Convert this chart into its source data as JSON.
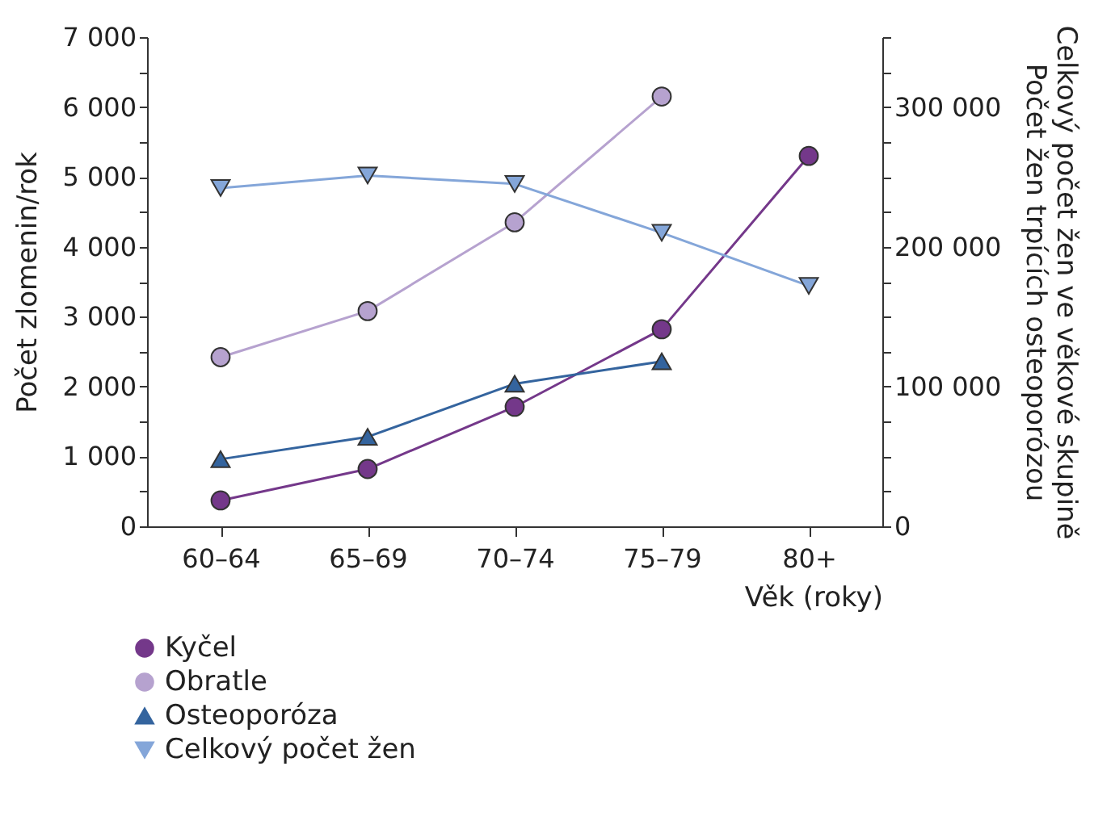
{
  "chart_data": {
    "type": "line",
    "xlabel": "Věk (roky)",
    "ylabel": "Počet zlomenin/rok",
    "y2label": "Celkový počet žen ve věkové skupině\nPočet žen trpících osteoporózou",
    "categories": [
      "60–64",
      "65–69",
      "70–74",
      "75–79",
      "80+"
    ],
    "series": [
      {
        "name": "Kyčel",
        "color": "#74388a",
        "marker": "circle",
        "values": [
          370,
          820,
          1710,
          2820,
          5300
        ]
      },
      {
        "name": "Obratle",
        "color": "#b6a2cf",
        "marker": "circle",
        "values": [
          2420,
          3080,
          4350,
          6150,
          null
        ]
      },
      {
        "name": "Osteoporóza",
        "color": "#34649e",
        "marker": "triangle",
        "axis": "y2",
        "values": [
          48000,
          64000,
          102000,
          118000,
          null
        ]
      },
      {
        "name": "Celkový počet žen",
        "color": "#84a6d9",
        "marker": "triangle-down",
        "axis": "y2",
        "values": [
          242000,
          251000,
          245000,
          210000,
          172000
        ]
      }
    ],
    "ylim": [
      0,
      7000
    ],
    "yticks": [
      0,
      {
        "value": 500,
        "label": null
      },
      {
        "value": 1000,
        "label": "1 000"
      },
      {
        "value": 1500,
        "label": null
      },
      {
        "value": 2000,
        "label": "2 000"
      },
      {
        "value": 2500,
        "label": null
      },
      {
        "value": 3000,
        "label": "3 000"
      },
      {
        "value": 3500,
        "label": null
      },
      {
        "value": 4000,
        "label": "4 000"
      },
      {
        "value": 4500,
        "label": null
      },
      {
        "value": 5000,
        "label": "5 000"
      },
      {
        "value": 5500,
        "label": null
      },
      {
        "value": 6000,
        "label": "6 000"
      },
      {
        "value": 6500,
        "label": null
      },
      {
        "value": 7000,
        "label": "7 000"
      }
    ],
    "y2lim": [
      0,
      350000
    ],
    "y2ticks": [
      0,
      {
        "value": 25000,
        "label": null
      },
      {
        "value": 50000,
        "label": null
      },
      {
        "value": 75000,
        "label": null
      },
      {
        "value": 100000,
        "label": "100 000"
      },
      {
        "value": 125000,
        "label": null
      },
      {
        "value": 150000,
        "label": null
      },
      {
        "value": 175000,
        "label": null
      },
      {
        "value": 200000,
        "label": "200 000"
      },
      {
        "value": 225000,
        "label": null
      },
      {
        "value": 250000,
        "label": null
      },
      {
        "value": 275000,
        "label": null
      },
      {
        "value": 300000,
        "label": "300 000"
      },
      {
        "value": 325000,
        "label": null
      },
      {
        "value": 350000,
        "label": null
      }
    ],
    "grid": false,
    "legend": "bottom left",
    "line_style": "solid"
  }
}
